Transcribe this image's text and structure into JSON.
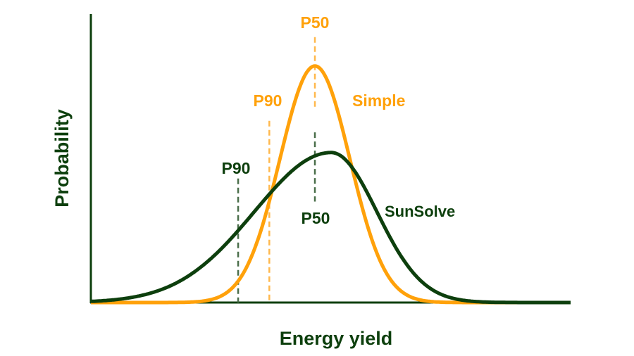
{
  "chart_data": {
    "type": "line",
    "title": "",
    "xlabel": "Energy yield",
    "ylabel": "Probability",
    "xlim": [
      0,
      100
    ],
    "ylim": [
      0,
      1
    ],
    "grid": false,
    "series": [
      {
        "name": "Simple",
        "color": "#FFA10A",
        "distribution": "normal",
        "mode": 46.7,
        "sigma_left": 7.3,
        "sigma_right": 7.3,
        "peak": 0.82,
        "markers": [
          {
            "label": "P90",
            "x": 37.2,
            "y_top": 0.63
          },
          {
            "label": "P50",
            "x": 46.7,
            "y_top": 0.92,
            "y_bottom": 0.67
          }
        ]
      },
      {
        "name": "SunSolve",
        "color": "#0D3F0D",
        "distribution": "skewed",
        "mode": 50.1,
        "sigma_left": 16,
        "sigma_right": 9.5,
        "peak": 0.52,
        "markers": [
          {
            "label": "P90",
            "x": 30.7,
            "y_top": 0.43
          },
          {
            "label": "P50",
            "x": 46.7,
            "y_top": 0.59,
            "y_bottom": 0.35
          }
        ]
      }
    ]
  },
  "colors": {
    "axis": "#0D3F0D",
    "simple": "#FFA10A",
    "simple_dash": "#FFB84D",
    "sunsolve": "#0D3F0D",
    "sunsolve_dash": "#4A6E4A"
  }
}
